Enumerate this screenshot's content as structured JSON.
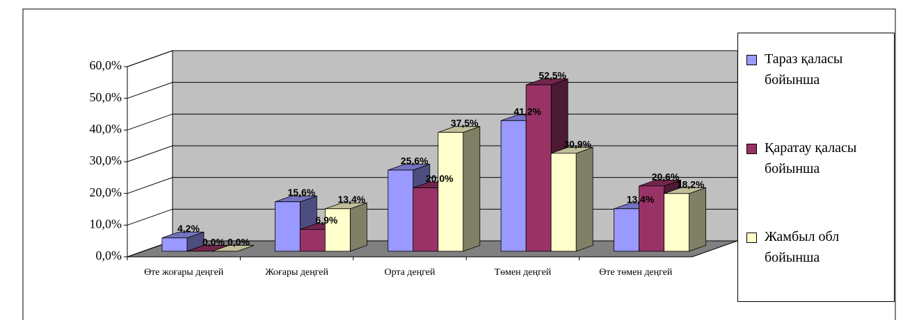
{
  "chart_data": {
    "type": "bar3d",
    "categories": [
      "Өте жоғары деңгей",
      "Жоғары деңгей",
      "Орта деңгей",
      "Төмен деңгей",
      "Өте төмен деңгей"
    ],
    "series": [
      {
        "name": "Тараз қаласы бойынша",
        "color": "#9999ff",
        "values": [
          4.2,
          15.6,
          25.6,
          41.2,
          13.4
        ],
        "value_labels": [
          "4,2%",
          "15,6%",
          "25,6%",
          "41,2%",
          "13,4%"
        ]
      },
      {
        "name": "Қаратау қаласы бойынша",
        "color": "#993366",
        "values": [
          0.0,
          6.9,
          20.0,
          52.5,
          20.6
        ],
        "value_labels": [
          "0,0%",
          "6,9%",
          "20,0%",
          "52,5%",
          "20,6%"
        ]
      },
      {
        "name": "Жамбыл обл бойынша",
        "color": "#ffffcc",
        "values": [
          0.0,
          13.4,
          37.5,
          30.9,
          18.2
        ],
        "value_labels": [
          "0,0%",
          "13,4%",
          "37,5%",
          "30,9%",
          "18,2%"
        ]
      }
    ],
    "ylim": [
      0,
      60
    ],
    "yticks": [
      {
        "value": 0,
        "label": "0,0%"
      },
      {
        "value": 10,
        "label": "10,0%"
      },
      {
        "value": 20,
        "label": "20,0%"
      },
      {
        "value": 30,
        "label": "30,0%"
      },
      {
        "value": 40,
        "label": "40,0%"
      },
      {
        "value": 50,
        "label": "50,0%"
      },
      {
        "value": 60,
        "label": "60,0%"
      }
    ],
    "grid": true,
    "legend": "right"
  }
}
